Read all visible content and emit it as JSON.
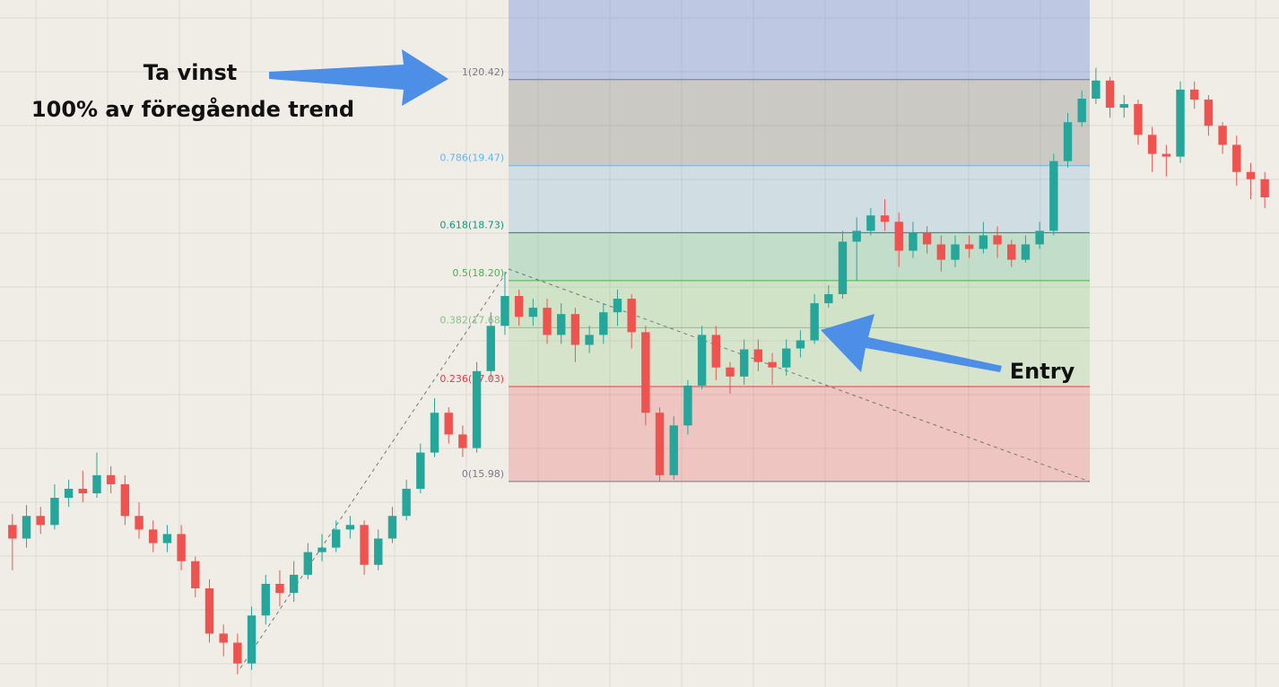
{
  "chart_data": {
    "type": "candlestick",
    "ylim": [
      13.71,
      21.3
    ],
    "up_color": "#26a69a",
    "down_color": "#ef5350",
    "series": [
      {
        "open": [
          15.5,
          15.35,
          15.6,
          15.5,
          15.8,
          15.9,
          15.85,
          16.05,
          15.95,
          15.6,
          15.45,
          15.3,
          15.4,
          15.1,
          14.8,
          14.3,
          14.2,
          13.97,
          14.5,
          14.85,
          14.75,
          14.95,
          15.2,
          15.25,
          15.45,
          15.5,
          15.06,
          15.35,
          15.6,
          15.9,
          16.3,
          16.74,
          16.5,
          16.35,
          17.2,
          17.7,
          18.03,
          17.8,
          17.9,
          17.6,
          17.83,
          17.49,
          17.6,
          17.85,
          18.0,
          17.63,
          16.74,
          16.05,
          16.6,
          17.04,
          17.6,
          17.24,
          17.14,
          17.44,
          17.3,
          17.24,
          17.45,
          17.54,
          17.95,
          18.05,
          18.63,
          18.75,
          18.92,
          18.85,
          18.53,
          18.73,
          18.6,
          18.43,
          18.6,
          18.55,
          18.7,
          18.6,
          18.43,
          18.6,
          18.75,
          19.52,
          19.95,
          20.21,
          20.41,
          20.11,
          20.15,
          19.81,
          19.6,
          19.57,
          20.31,
          20.2,
          19.91,
          19.7,
          19.4,
          19.32
        ],
        "high": [
          15.62,
          15.72,
          15.7,
          15.95,
          16.0,
          16.1,
          16.3,
          16.15,
          16.05,
          15.75,
          15.55,
          15.5,
          15.5,
          15.15,
          14.9,
          14.4,
          14.3,
          14.6,
          14.95,
          15.0,
          15.1,
          15.3,
          15.4,
          15.55,
          15.6,
          15.55,
          15.45,
          15.7,
          16.0,
          16.4,
          16.9,
          16.8,
          16.6,
          17.3,
          17.85,
          18.3,
          18.1,
          18.0,
          18.0,
          17.95,
          17.9,
          17.7,
          17.95,
          18.1,
          18.05,
          17.7,
          16.8,
          16.7,
          17.1,
          17.7,
          17.7,
          17.3,
          17.55,
          17.55,
          17.4,
          17.55,
          17.65,
          18.05,
          18.15,
          18.75,
          18.9,
          19.0,
          19.1,
          18.95,
          18.85,
          18.8,
          18.7,
          18.7,
          18.7,
          18.85,
          18.8,
          18.65,
          18.7,
          18.85,
          19.6,
          20.05,
          20.3,
          20.55,
          20.45,
          20.25,
          20.2,
          19.9,
          19.7,
          20.4,
          20.4,
          20.25,
          19.95,
          19.8,
          19.5,
          19.4
        ],
        "low": [
          15.0,
          15.25,
          15.4,
          15.45,
          15.7,
          15.75,
          15.8,
          15.85,
          15.5,
          15.35,
          15.2,
          15.2,
          15.0,
          14.7,
          14.2,
          14.05,
          13.85,
          13.9,
          14.4,
          14.6,
          14.65,
          14.9,
          15.1,
          15.2,
          15.35,
          14.95,
          15.0,
          15.3,
          15.55,
          15.85,
          16.25,
          16.4,
          16.25,
          16.3,
          17.1,
          17.6,
          17.7,
          17.7,
          17.5,
          17.5,
          17.3,
          17.4,
          17.5,
          17.7,
          17.45,
          16.6,
          15.98,
          16.0,
          16.5,
          17.0,
          17.1,
          16.95,
          17.05,
          17.2,
          17.05,
          17.15,
          17.35,
          17.5,
          17.9,
          18.0,
          18.2,
          18.7,
          18.75,
          18.35,
          18.45,
          18.5,
          18.3,
          18.35,
          18.45,
          18.5,
          18.45,
          18.35,
          18.4,
          18.55,
          18.7,
          19.45,
          19.9,
          20.15,
          20.0,
          20.0,
          19.7,
          19.4,
          19.35,
          19.5,
          20.1,
          19.8,
          19.6,
          19.25,
          19.1,
          19.0
        ],
        "close": [
          15.35,
          15.6,
          15.5,
          15.8,
          15.9,
          15.85,
          16.05,
          15.95,
          15.6,
          15.45,
          15.3,
          15.4,
          15.1,
          14.8,
          14.3,
          14.2,
          13.97,
          14.5,
          14.85,
          14.75,
          14.95,
          15.2,
          15.25,
          15.45,
          15.5,
          15.06,
          15.35,
          15.6,
          15.9,
          16.3,
          16.74,
          16.5,
          16.35,
          17.2,
          17.7,
          18.03,
          17.8,
          17.9,
          17.6,
          17.83,
          17.49,
          17.6,
          17.85,
          18.0,
          17.63,
          16.74,
          16.05,
          16.6,
          17.04,
          17.6,
          17.24,
          17.14,
          17.44,
          17.3,
          17.24,
          17.45,
          17.54,
          17.95,
          18.05,
          18.63,
          18.75,
          18.92,
          18.85,
          18.53,
          18.73,
          18.6,
          18.43,
          18.6,
          18.55,
          18.7,
          18.6,
          18.43,
          18.6,
          18.75,
          19.52,
          19.95,
          20.21,
          20.41,
          20.11,
          20.15,
          19.81,
          19.6,
          19.57,
          20.31,
          20.2,
          19.91,
          19.7,
          19.4,
          19.32,
          19.12
        ]
      }
    ],
    "fib_top_fill": "rgba(110,140,220,0.38)",
    "fib_levels": [
      {
        "value": 20.42,
        "label": "1(20.42)",
        "color": "#787b86",
        "fill": "rgba(120,120,120,0.30)"
      },
      {
        "value": 19.47,
        "label": "0.786(19.47)",
        "color": "#64b5f6",
        "fill": "rgba(100,170,225,0.22)"
      },
      {
        "value": 18.73,
        "label": "0.618(18.73)",
        "color": "#089981",
        "fill": "rgba(40,165,110,0.22)"
      },
      {
        "value": 18.2,
        "label": "0.5(18.20)",
        "color": "#4caf50",
        "fill": "rgba(100,190,90,0.22)"
      },
      {
        "value": 17.68,
        "label": "0.382(17.68)",
        "color": "#81c784",
        "fill": "rgba(100,190,90,0.18)"
      },
      {
        "value": 17.03,
        "label": "0.236(17.03)",
        "color": "#f23645",
        "fill": "rgba(235,80,80,0.25)"
      },
      {
        "value": 15.98,
        "label": "0(15.98)",
        "color": "#787b86"
      }
    ],
    "annotations": [
      "Ta vinst",
      "100% av föregående trend",
      "Entry"
    ]
  }
}
